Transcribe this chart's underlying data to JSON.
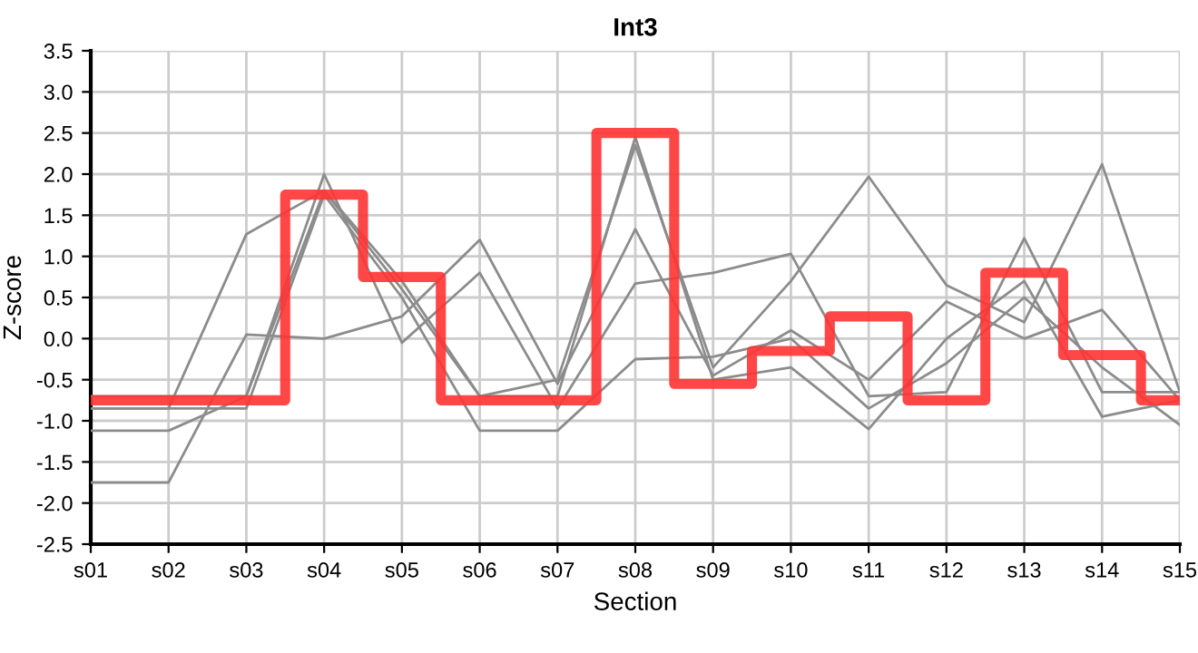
{
  "chart_data": {
    "type": "line",
    "title": "Int3",
    "xlabel": "Section",
    "ylabel": "Z-score",
    "categories": [
      "s01",
      "s02",
      "s03",
      "s04",
      "s05",
      "s06",
      "s07",
      "s08",
      "s09",
      "s10",
      "s11",
      "s12",
      "s13",
      "s14",
      "s15"
    ],
    "series": [
      {
        "color": "#8c8c8c",
        "values": [
          -0.85,
          -0.85,
          1.27,
          1.8,
          0.6,
          -0.7,
          -0.5,
          2.35,
          -0.35,
          0.7,
          1.97,
          0.65,
          0.2,
          2.12,
          -0.65
        ]
      },
      {
        "color": "#8c8c8c",
        "values": [
          -1.75,
          -1.75,
          0.05,
          0.0,
          0.27,
          1.2,
          -0.55,
          1.33,
          -0.45,
          0.1,
          -0.5,
          0.45,
          0.0,
          0.35,
          -0.75
        ]
      },
      {
        "color": "#8c8c8c",
        "values": [
          -1.12,
          -1.12,
          -0.7,
          2.0,
          -0.05,
          0.8,
          -0.85,
          0.67,
          0.8,
          1.03,
          -0.7,
          -0.65,
          1.22,
          -0.65,
          -0.65
        ]
      },
      {
        "color": "#8c8c8c",
        "values": [
          -0.7,
          -0.7,
          -0.7,
          1.8,
          0.7,
          -0.7,
          -0.7,
          2.45,
          -0.5,
          -0.35,
          -1.1,
          0.0,
          0.7,
          -0.95,
          -0.75
        ]
      },
      {
        "color": "#8c8c8c",
        "values": [
          -0.85,
          -0.85,
          -0.85,
          1.75,
          0.5,
          -1.12,
          -1.12,
          -0.25,
          -0.22,
          0.0,
          -0.85,
          -0.3,
          0.5,
          -0.35,
          -1.05
        ]
      },
      {
        "type": "step",
        "color": "#ff3333",
        "values": [
          -0.75,
          -0.75,
          -0.75,
          1.75,
          0.75,
          -0.75,
          -0.75,
          2.5,
          -0.55,
          -0.15,
          0.27,
          -0.75,
          0.8,
          -0.2,
          -0.75
        ]
      }
    ],
    "ylim": [
      -2.5,
      3.5
    ],
    "yticks": [
      -2.5,
      {
        "value": -2,
        "label": "-2.0"
      },
      -1.5,
      {
        "value": -1,
        "label": "-1.0"
      },
      -0.5,
      {
        "value": 0,
        "label": "0.0"
      },
      0.5,
      {
        "value": 1,
        "label": "1.0"
      },
      1.5,
      {
        "value": 2,
        "label": "2.0"
      },
      2.5,
      {
        "value": 3,
        "label": "3.0"
      },
      3.5
    ],
    "grid": true,
    "line_style": "solid"
  }
}
